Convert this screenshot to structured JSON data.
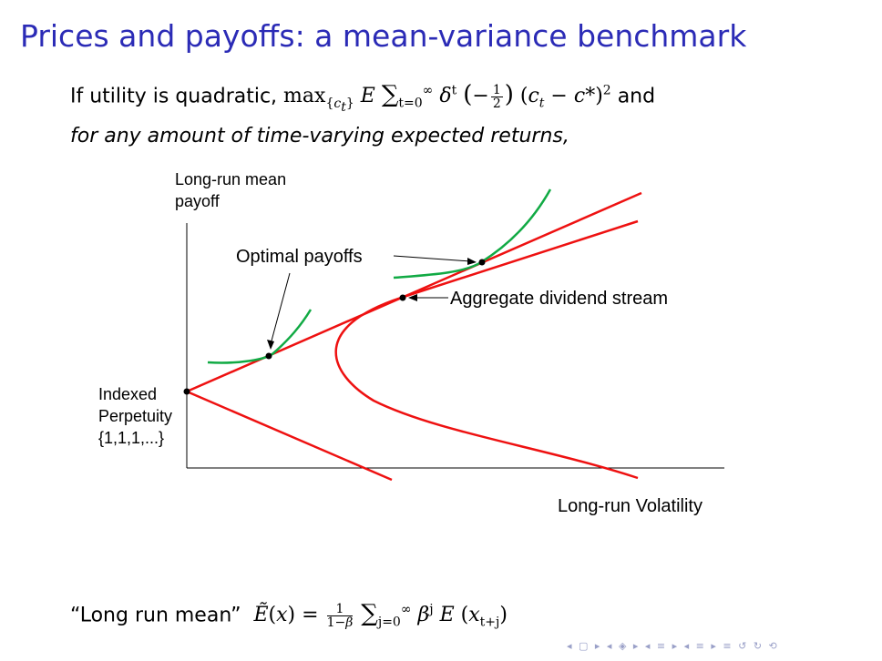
{
  "slide": {
    "title": "Prices and payoffs: a mean-variance benchmark",
    "intro_prefix": "If utility is quadratic,",
    "intro_and": "and",
    "intro_italic": "for any amount of time-varying expected returns,",
    "bottom_label": "“Long run mean”"
  },
  "diagram": {
    "y_axis_label_line1": "Long-run mean",
    "y_axis_label_line2": "payoff",
    "x_axis_label": "Long-run Volatility",
    "optimal_label": "Optimal payoffs",
    "aggregate_label": "Aggregate dividend stream",
    "perpetuity_line1": "Indexed",
    "perpetuity_line2": "Perpetuity",
    "perpetuity_line3": "{1,1,1,...}",
    "colors": {
      "frontier": "#ee1111",
      "indifference": "#11aa44",
      "axis": "#000000"
    }
  },
  "nav": {
    "symbols": "◂ ▢ ▸ ◂ ◈ ▸ ◂ ≡ ▸ ◂ ≡ ▸  ≡  ↺ ↻ ⟲"
  },
  "colors": {
    "title": "#2b2bb6"
  }
}
